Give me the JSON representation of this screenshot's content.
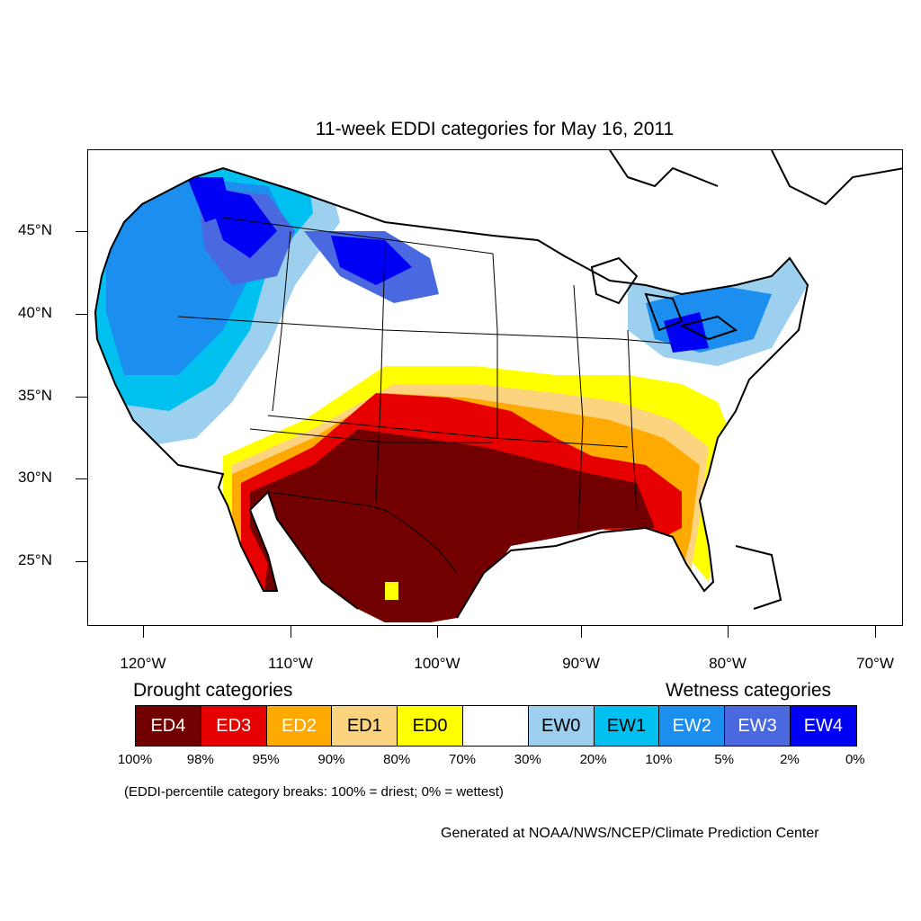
{
  "title": "11-week EDDI categories for May 16, 2011",
  "map": {
    "lat_labels": [
      "45°N",
      "40°N",
      "35°N",
      "30°N",
      "25°N"
    ],
    "lon_labels": [
      "120°W",
      "110°W",
      "100°W",
      "90°W",
      "80°W",
      "70°W"
    ]
  },
  "legend": {
    "drought_heading": "Drought categories",
    "wetness_heading": "Wetness categories",
    "categories": [
      {
        "label": "ED4",
        "color": "#730000",
        "text_color": "#ffffff"
      },
      {
        "label": "ED3",
        "color": "#e60000",
        "text_color": "#ffffff"
      },
      {
        "label": "ED2",
        "color": "#ffaa00",
        "text_color": "#ffffff"
      },
      {
        "label": "ED1",
        "color": "#fcd37f",
        "text_color": "#000000"
      },
      {
        "label": "ED0",
        "color": "#ffff00",
        "text_color": "#000000"
      },
      {
        "label": "",
        "color": "#ffffff",
        "text_color": "#000000"
      },
      {
        "label": "EW0",
        "color": "#9dcfee",
        "text_color": "#000000"
      },
      {
        "label": "EW1",
        "color": "#00c0f0",
        "text_color": "#000000"
      },
      {
        "label": "EW2",
        "color": "#1c8ef0",
        "text_color": "#ffffff"
      },
      {
        "label": "EW3",
        "color": "#4a68e0",
        "text_color": "#ffffff"
      },
      {
        "label": "EW4",
        "color": "#0000f5",
        "text_color": "#ffffff"
      }
    ],
    "breaks": [
      "100%",
      "98%",
      "95%",
      "90%",
      "80%",
      "70%",
      "30%",
      "20%",
      "10%",
      "5%",
      "2%",
      "0%"
    ],
    "note": "(EDDI-percentile category breaks: 100% = driest; 0% = wettest)"
  },
  "credit": "Generated at NOAA/NWS/NCEP/Climate Prediction Center"
}
